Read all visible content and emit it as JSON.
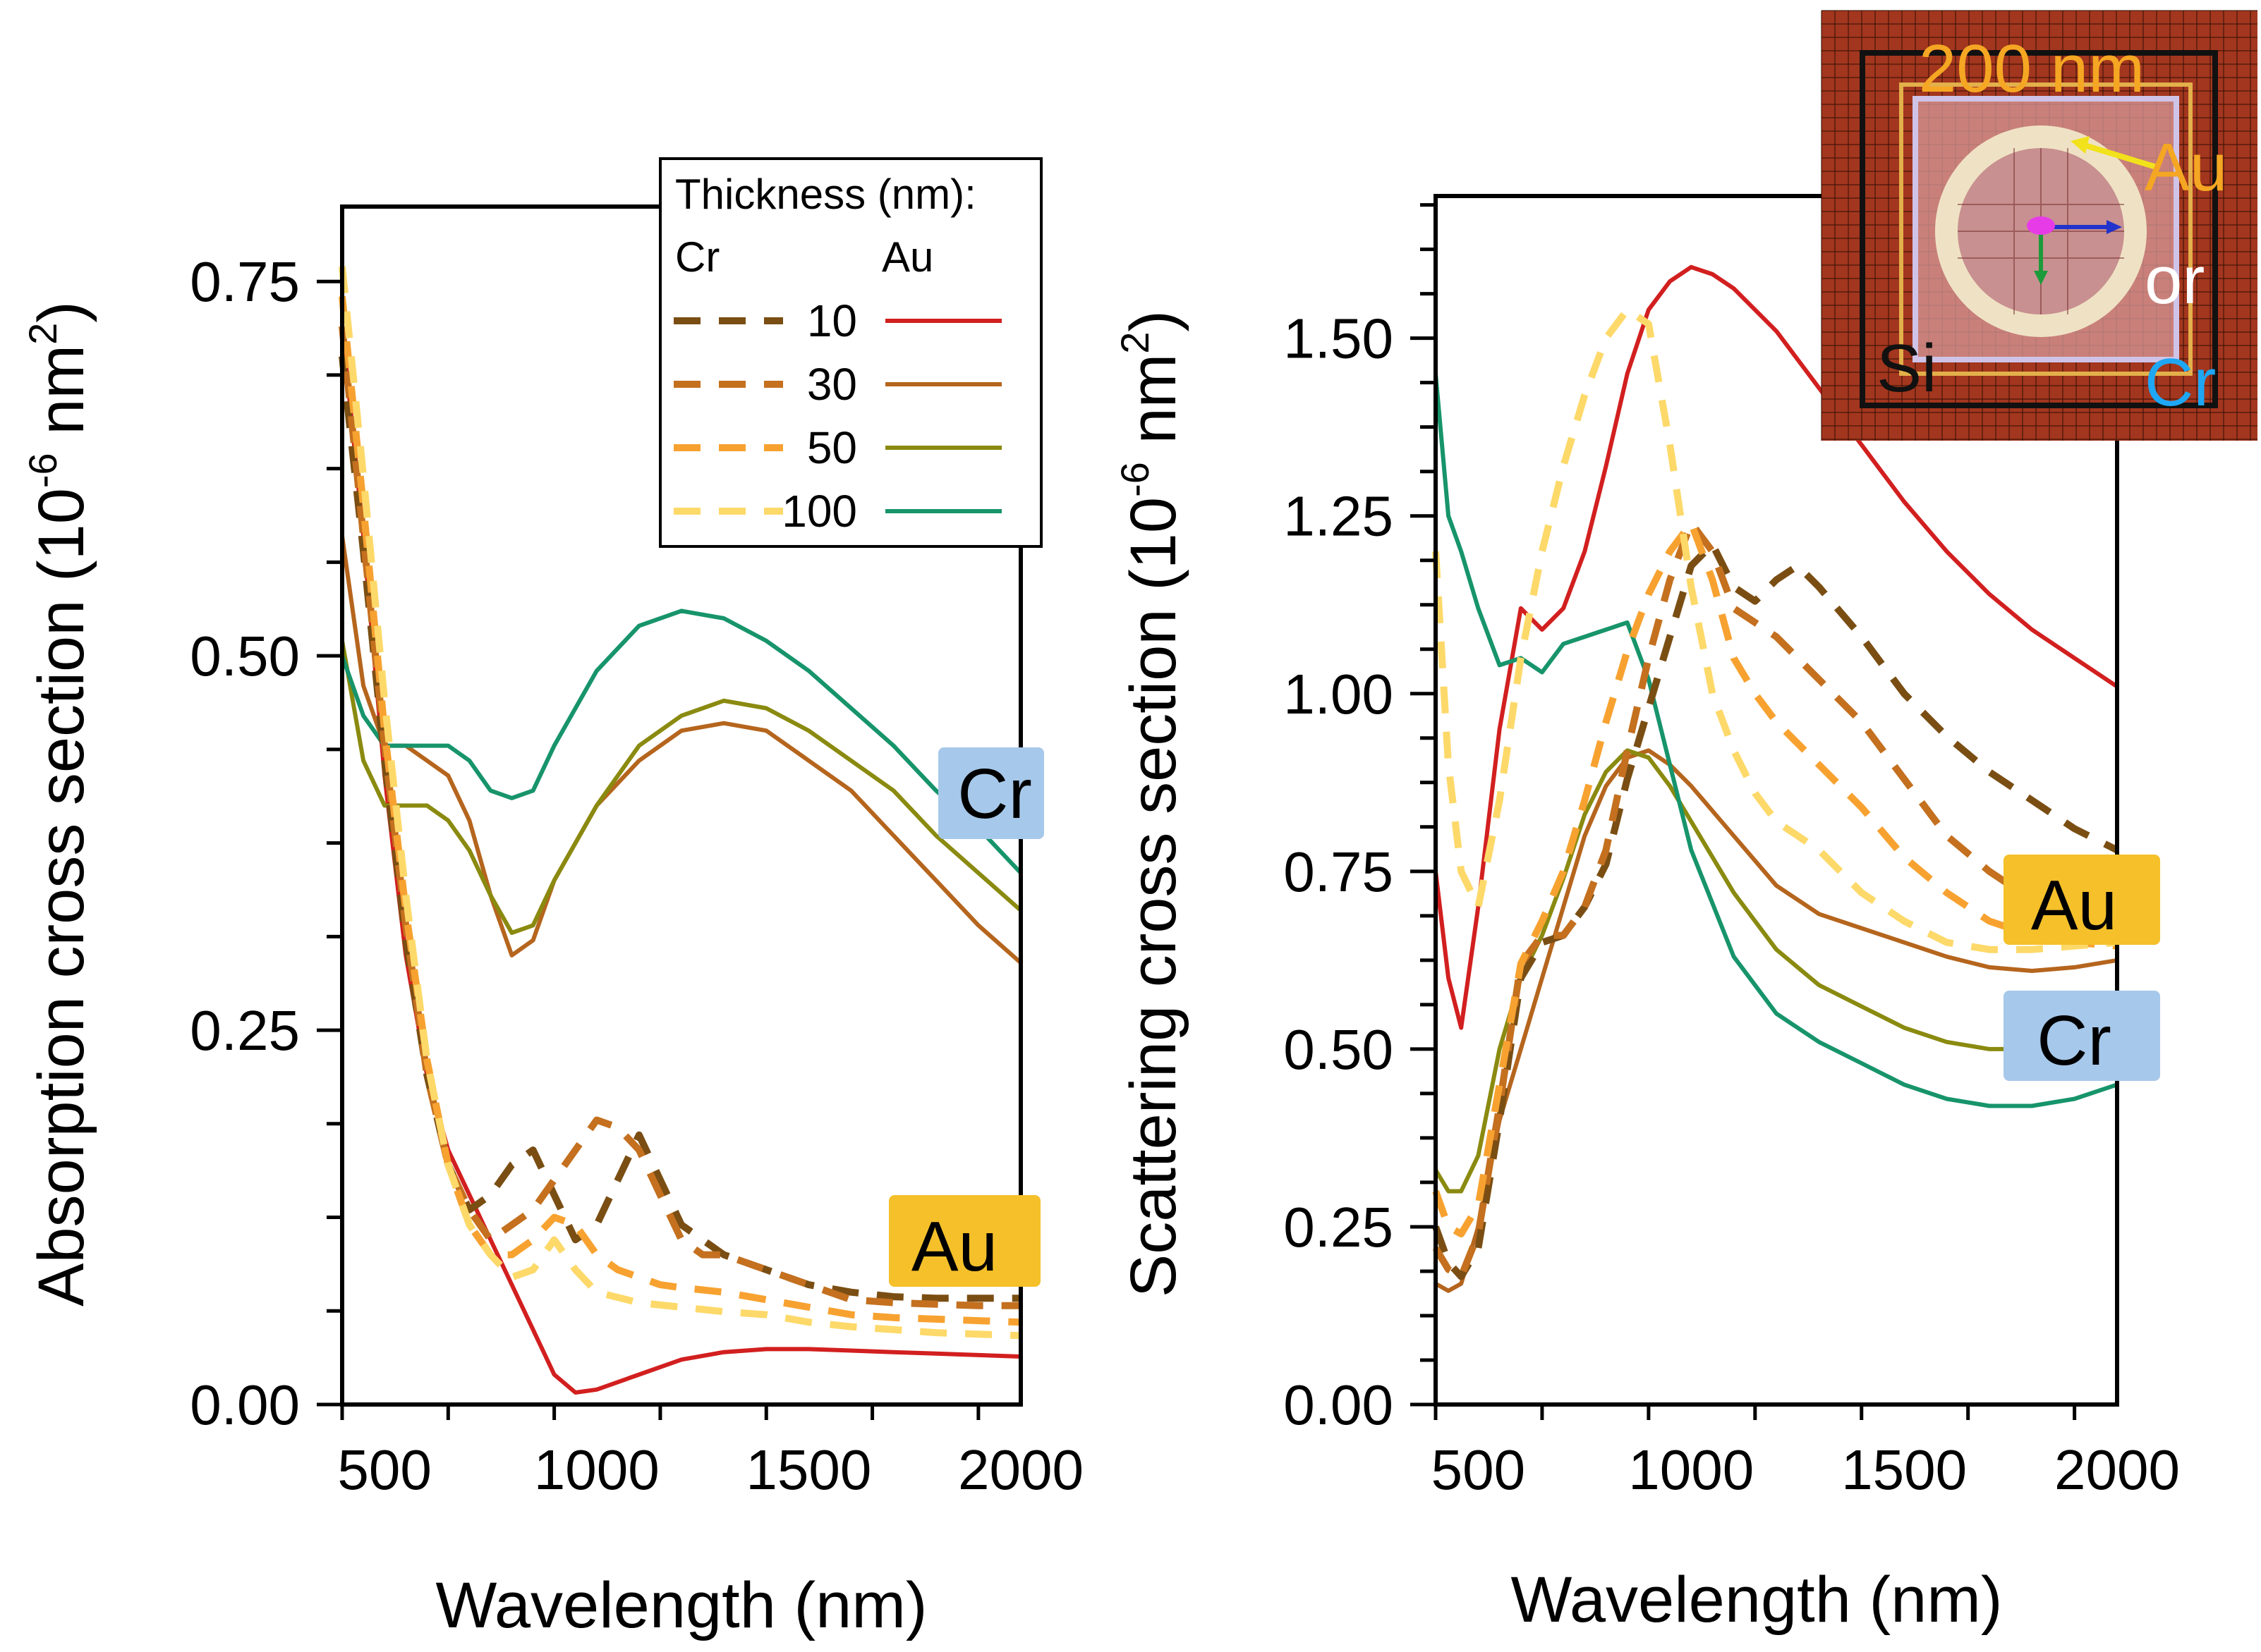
{
  "colors": {
    "au_10": "#d21f1f",
    "au_30": "#b5651d",
    "au_50": "#8a8a10",
    "au_100": "#17946b",
    "cr_10": "#7a4e13",
    "cr_30": "#c4701f",
    "cr_50": "#f7a230",
    "cr_100": "#fdd96a",
    "tag_cr_bg": "#a6c8ea",
    "tag_au_bg": "#f5c02a",
    "inset_bg": "#a3361e",
    "inset_label": "#f5a623",
    "inset_arrow": "#f2e21b",
    "inset_cr": "#1ea7f5"
  },
  "legend": {
    "title": "Thickness (nm):",
    "col_cr": "Cr",
    "col_au": "Au",
    "rows": [
      "10",
      "30",
      "50",
      "100"
    ]
  },
  "tags": {
    "left_cr": "Cr",
    "left_au": "Au",
    "right_au": "Au",
    "right_cr": "Cr"
  },
  "inset": {
    "scale_label": "200 nm",
    "label_au": "Au",
    "label_or": "or",
    "label_cr": "Cr",
    "label_si": "Si"
  },
  "chart_data": [
    {
      "type": "line",
      "title": "",
      "xlabel": "Wavelength (nm)",
      "ylabel": "Absorption cross section (10",
      "ylabel_sup": "-6",
      "ylabel_unit": "nm",
      "ylabel_sup2": "2",
      "ylabel_close": ")",
      "xlim": [
        400,
        2000
      ],
      "ylim": [
        0,
        0.8
      ],
      "xticks": [
        500,
        1000,
        1500,
        2000
      ],
      "xtick_labels": [
        "500",
        "1000",
        "1500",
        "2000"
      ],
      "yticks": [
        0,
        0.25,
        0.5,
        0.75
      ],
      "ytick_labels": [
        "0.00",
        "0.25",
        "0.50",
        "0.75"
      ],
      "series": [
        {
          "name": "Au 10 nm",
          "style": "solid",
          "color_key": "au_10",
          "x": [
            400,
            450,
            500,
            550,
            600,
            650,
            700,
            750,
            800,
            850,
            900,
            950,
            1000,
            1100,
            1200,
            1300,
            1400,
            1500,
            1600,
            1700,
            1800,
            1900,
            2000
          ],
          "y": [
            0.72,
            0.58,
            0.42,
            0.3,
            0.22,
            0.17,
            0.14,
            0.11,
            0.08,
            0.05,
            0.02,
            0.008,
            0.01,
            0.02,
            0.03,
            0.035,
            0.037,
            0.037,
            0.036,
            0.035,
            0.034,
            0.033,
            0.032
          ]
        },
        {
          "name": "Au 30 nm",
          "style": "solid",
          "color_key": "au_30",
          "x": [
            400,
            450,
            500,
            550,
            600,
            650,
            700,
            750,
            800,
            850,
            900,
            1000,
            1100,
            1200,
            1300,
            1400,
            1500,
            1600,
            1700,
            1800,
            1900,
            2000
          ],
          "y": [
            0.58,
            0.48,
            0.44,
            0.44,
            0.43,
            0.42,
            0.39,
            0.34,
            0.3,
            0.31,
            0.35,
            0.4,
            0.43,
            0.45,
            0.455,
            0.45,
            0.43,
            0.41,
            0.38,
            0.35,
            0.32,
            0.295
          ]
        },
        {
          "name": "Au 50 nm",
          "style": "solid",
          "color_key": "au_50",
          "x": [
            400,
            450,
            500,
            550,
            600,
            650,
            700,
            750,
            800,
            850,
            900,
            1000,
            1100,
            1200,
            1300,
            1400,
            1500,
            1600,
            1700,
            1800,
            1900,
            2000
          ],
          "y": [
            0.51,
            0.43,
            0.4,
            0.4,
            0.4,
            0.39,
            0.37,
            0.34,
            0.315,
            0.32,
            0.35,
            0.4,
            0.44,
            0.46,
            0.47,
            0.465,
            0.45,
            0.43,
            0.41,
            0.38,
            0.355,
            0.33
          ]
        },
        {
          "name": "Au 100 nm",
          "style": "solid",
          "color_key": "au_100",
          "x": [
            400,
            450,
            500,
            550,
            600,
            650,
            700,
            750,
            800,
            850,
            900,
            1000,
            1100,
            1200,
            1300,
            1400,
            1500,
            1600,
            1700,
            1800,
            1900,
            2000
          ],
          "y": [
            0.5,
            0.46,
            0.44,
            0.44,
            0.44,
            0.44,
            0.43,
            0.41,
            0.405,
            0.41,
            0.44,
            0.49,
            0.52,
            0.53,
            0.525,
            0.51,
            0.49,
            0.465,
            0.44,
            0.41,
            0.385,
            0.355
          ]
        },
        {
          "name": "Cr 10 nm",
          "style": "dashed",
          "color_key": "cr_10",
          "x": [
            400,
            450,
            500,
            550,
            600,
            650,
            700,
            750,
            800,
            850,
            900,
            950,
            1000,
            1050,
            1100,
            1150,
            1200,
            1300,
            1400,
            1500,
            1600,
            1700,
            1800,
            1900,
            2000
          ],
          "y": [
            0.7,
            0.57,
            0.43,
            0.31,
            0.22,
            0.16,
            0.13,
            0.14,
            0.16,
            0.17,
            0.14,
            0.11,
            0.12,
            0.15,
            0.18,
            0.15,
            0.12,
            0.1,
            0.09,
            0.08,
            0.075,
            0.072,
            0.071,
            0.071,
            0.071
          ]
        },
        {
          "name": "Cr 30 nm",
          "style": "dashed",
          "color_key": "cr_30",
          "x": [
            400,
            450,
            500,
            550,
            600,
            650,
            700,
            750,
            800,
            850,
            900,
            950,
            1000,
            1050,
            1100,
            1150,
            1200,
            1250,
            1300,
            1400,
            1500,
            1600,
            1700,
            1800,
            1900,
            2000
          ],
          "y": [
            0.72,
            0.58,
            0.44,
            0.32,
            0.22,
            0.16,
            0.13,
            0.11,
            0.12,
            0.13,
            0.15,
            0.17,
            0.19,
            0.185,
            0.17,
            0.14,
            0.11,
            0.1,
            0.1,
            0.09,
            0.08,
            0.07,
            0.068,
            0.067,
            0.066,
            0.066
          ]
        },
        {
          "name": "Cr 50 nm",
          "style": "dashed",
          "color_key": "cr_50",
          "x": [
            400,
            450,
            500,
            550,
            600,
            650,
            700,
            750,
            800,
            850,
            900,
            950,
            1000,
            1050,
            1100,
            1150,
            1200,
            1300,
            1400,
            1500,
            1600,
            1700,
            1800,
            1900,
            2000
          ],
          "y": [
            0.74,
            0.6,
            0.45,
            0.33,
            0.23,
            0.16,
            0.12,
            0.1,
            0.1,
            0.11,
            0.125,
            0.12,
            0.1,
            0.09,
            0.085,
            0.08,
            0.078,
            0.075,
            0.07,
            0.065,
            0.06,
            0.058,
            0.057,
            0.056,
            0.055
          ]
        },
        {
          "name": "Cr 100 nm",
          "style": "dashed",
          "color_key": "cr_100",
          "x": [
            400,
            450,
            500,
            550,
            600,
            650,
            700,
            750,
            800,
            850,
            900,
            950,
            1000,
            1100,
            1200,
            1300,
            1400,
            1500,
            1600,
            1700,
            1800,
            1900,
            2000
          ],
          "y": [
            0.76,
            0.62,
            0.47,
            0.34,
            0.23,
            0.16,
            0.12,
            0.1,
            0.085,
            0.09,
            0.11,
            0.09,
            0.075,
            0.068,
            0.065,
            0.062,
            0.06,
            0.055,
            0.052,
            0.05,
            0.048,
            0.047,
            0.046
          ]
        }
      ]
    },
    {
      "type": "line",
      "title": "",
      "xlabel": "Wavelength (nm)",
      "ylabel": "Scattering cross section (10",
      "ylabel_sup": "-6",
      "ylabel_unit": "nm",
      "ylabel_sup2": "2",
      "ylabel_close": ")",
      "xlim": [
        400,
        2000
      ],
      "ylim": [
        0,
        1.7
      ],
      "xticks": [
        500,
        1000,
        1500,
        2000
      ],
      "xtick_labels": [
        "500",
        "1000",
        "1500",
        "2000"
      ],
      "yticks": [
        0,
        0.25,
        0.5,
        0.75,
        1.0,
        1.25,
        1.5
      ],
      "ytick_labels": [
        "0.00",
        "0.25",
        "0.50",
        "0.75",
        "1.00",
        "1.25",
        "1.50"
      ],
      "series": [
        {
          "name": "Au 10 nm",
          "style": "solid",
          "color_key": "au_10",
          "x": [
            400,
            430,
            460,
            500,
            550,
            600,
            650,
            700,
            750,
            800,
            850,
            900,
            950,
            1000,
            1050,
            1100,
            1200,
            1300,
            1400,
            1500,
            1600,
            1700,
            1800,
            1900,
            2000
          ],
          "y": [
            0.75,
            0.6,
            0.53,
            0.7,
            0.95,
            1.12,
            1.09,
            1.12,
            1.2,
            1.32,
            1.45,
            1.54,
            1.58,
            1.6,
            1.59,
            1.57,
            1.51,
            1.43,
            1.35,
            1.27,
            1.2,
            1.14,
            1.09,
            1.05,
            1.01
          ]
        },
        {
          "name": "Au 30 nm",
          "style": "solid",
          "color_key": "au_30",
          "x": [
            400,
            430,
            460,
            500,
            550,
            600,
            650,
            700,
            750,
            800,
            850,
            900,
            950,
            1000,
            1100,
            1200,
            1300,
            1400,
            1500,
            1600,
            1700,
            1800,
            1900,
            2000
          ],
          "y": [
            0.17,
            0.16,
            0.17,
            0.25,
            0.4,
            0.5,
            0.6,
            0.7,
            0.8,
            0.87,
            0.91,
            0.92,
            0.9,
            0.87,
            0.8,
            0.73,
            0.69,
            0.67,
            0.65,
            0.63,
            0.615,
            0.61,
            0.615,
            0.625
          ]
        },
        {
          "name": "Au 50 nm",
          "style": "solid",
          "color_key": "au_50",
          "x": [
            400,
            430,
            460,
            500,
            550,
            600,
            650,
            700,
            750,
            800,
            850,
            900,
            950,
            1000,
            1100,
            1200,
            1300,
            1400,
            1500,
            1600,
            1700,
            1750
          ],
          "y": [
            0.33,
            0.3,
            0.3,
            0.35,
            0.5,
            0.6,
            0.66,
            0.74,
            0.83,
            0.89,
            0.92,
            0.91,
            0.87,
            0.82,
            0.72,
            0.64,
            0.59,
            0.56,
            0.53,
            0.51,
            0.5,
            0.5
          ]
        },
        {
          "name": "Au 100 nm",
          "style": "solid",
          "color_key": "au_100",
          "x": [
            400,
            430,
            460,
            500,
            550,
            600,
            650,
            700,
            750,
            800,
            850,
            900,
            950,
            1000,
            1100,
            1200,
            1300,
            1400,
            1500,
            1600,
            1700,
            1800,
            1900,
            2000
          ],
          "y": [
            1.45,
            1.25,
            1.2,
            1.12,
            1.04,
            1.05,
            1.03,
            1.07,
            1.08,
            1.09,
            1.1,
            1.02,
            0.9,
            0.78,
            0.63,
            0.55,
            0.51,
            0.48,
            0.45,
            0.43,
            0.42,
            0.42,
            0.43,
            0.45
          ]
        },
        {
          "name": "Cr 10 nm",
          "style": "dashed",
          "color_key": "cr_10",
          "x": [
            400,
            430,
            460,
            500,
            550,
            600,
            650,
            700,
            750,
            800,
            850,
            900,
            950,
            1000,
            1050,
            1100,
            1150,
            1200,
            1250,
            1300,
            1400,
            1500,
            1600,
            1700,
            1800,
            1900,
            2000
          ],
          "y": [
            0.25,
            0.2,
            0.18,
            0.22,
            0.4,
            0.6,
            0.65,
            0.66,
            0.7,
            0.76,
            0.88,
            0.98,
            1.08,
            1.18,
            1.21,
            1.15,
            1.13,
            1.16,
            1.18,
            1.15,
            1.08,
            1.0,
            0.94,
            0.89,
            0.85,
            0.81,
            0.78
          ]
        },
        {
          "name": "Cr 30 nm",
          "style": "dashed",
          "color_key": "cr_30",
          "x": [
            400,
            430,
            460,
            500,
            550,
            600,
            650,
            700,
            750,
            800,
            850,
            900,
            950,
            1000,
            1050,
            1100,
            1150,
            1200,
            1300,
            1400,
            1500,
            1600,
            1700,
            1800,
            1900,
            2000
          ],
          "y": [
            0.22,
            0.19,
            0.18,
            0.24,
            0.42,
            0.62,
            0.66,
            0.66,
            0.7,
            0.78,
            0.92,
            1.05,
            1.16,
            1.24,
            1.2,
            1.12,
            1.1,
            1.08,
            1.02,
            0.96,
            0.88,
            0.8,
            0.75,
            0.71,
            0.69,
            0.68
          ]
        },
        {
          "name": "Cr 50 nm",
          "style": "dashed",
          "color_key": "cr_50",
          "x": [
            400,
            430,
            460,
            500,
            550,
            600,
            650,
            700,
            750,
            800,
            850,
            900,
            950,
            1000,
            1050,
            1100,
            1150,
            1200,
            1300,
            1400,
            1500,
            1600,
            1700,
            1800,
            1900,
            2000
          ],
          "y": [
            0.3,
            0.25,
            0.24,
            0.28,
            0.45,
            0.62,
            0.68,
            0.75,
            0.85,
            0.96,
            1.06,
            1.14,
            1.2,
            1.24,
            1.16,
            1.05,
            1.0,
            0.96,
            0.9,
            0.84,
            0.77,
            0.72,
            0.68,
            0.66,
            0.65,
            0.645
          ]
        },
        {
          "name": "Cr 100 nm",
          "style": "dashed",
          "color_key": "cr_100",
          "x": [
            400,
            430,
            460,
            500,
            550,
            600,
            650,
            700,
            750,
            800,
            850,
            900,
            950,
            1000,
            1050,
            1100,
            1150,
            1200,
            1300,
            1400,
            1500,
            1600,
            1700,
            1800,
            1900,
            2000
          ],
          "y": [
            1.2,
            0.9,
            0.75,
            0.7,
            0.85,
            1.05,
            1.2,
            1.32,
            1.42,
            1.5,
            1.54,
            1.52,
            1.35,
            1.15,
            1.0,
            0.92,
            0.86,
            0.82,
            0.78,
            0.72,
            0.68,
            0.65,
            0.64,
            0.64,
            0.645,
            0.65
          ]
        }
      ]
    }
  ]
}
